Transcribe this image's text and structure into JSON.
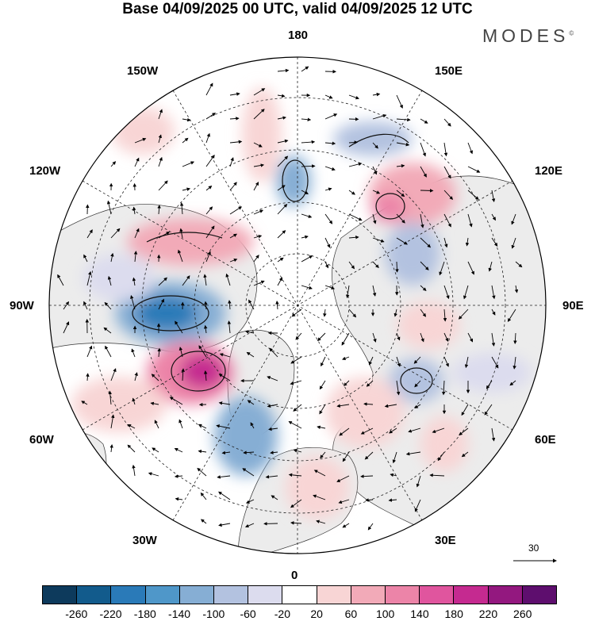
{
  "title": "Base 04/09/2025 00 UTC, valid 04/09/2025 12 UTC",
  "brand": "MODES",
  "brand_mark": "©",
  "lon_labels": {
    "top": "180",
    "bottom": "0",
    "left": "90W",
    "right": "90E",
    "upper_left_1": "150W",
    "upper_left_2": "120W",
    "lower_left_1": "60W",
    "lower_left_2": "30W",
    "upper_right_1": "150E",
    "upper_right_2": "120E",
    "lower_right_1": "60E",
    "lower_right_2": "30E"
  },
  "reference_vector_label": "30",
  "colorbar": {
    "colors": [
      "#0d3a5c",
      "#125b8c",
      "#2a7ab8",
      "#4f97c9",
      "#86aed4",
      "#b3c2e0",
      "#dcdcee",
      "#ffffff",
      "#f8d5d5",
      "#f2aab8",
      "#ec84a8",
      "#e0559e",
      "#c52a90",
      "#93187f",
      "#5e0e6e"
    ],
    "tick_labels": [
      "-260",
      "-220",
      "-180",
      "-140",
      "-100",
      "-60",
      "-20",
      "20",
      "60",
      "100",
      "140",
      "180",
      "220",
      "260"
    ]
  },
  "colors": {
    "land": "#ececec",
    "ocean": "#ffffff",
    "contour": "#111111"
  }
}
